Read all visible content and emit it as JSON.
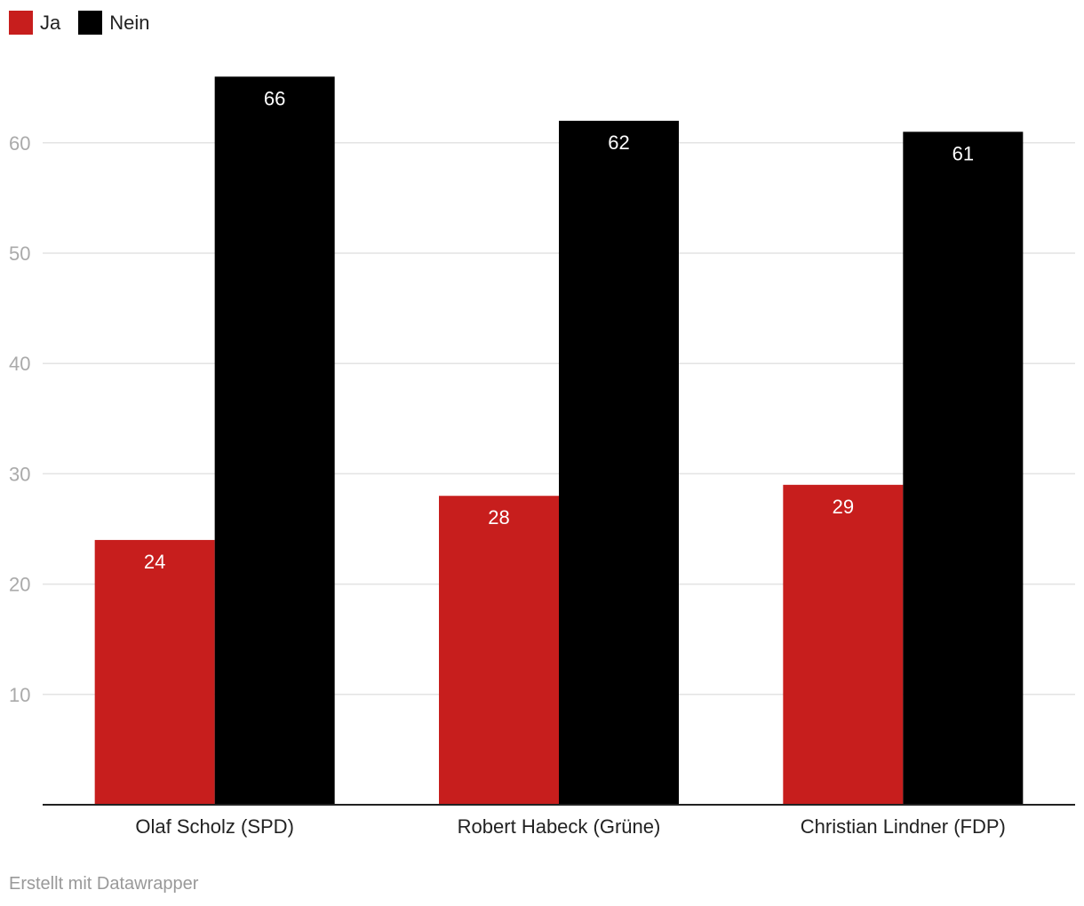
{
  "chart_data": {
    "type": "bar",
    "categories": [
      "Olaf Scholz (SPD)",
      "Robert Habeck (Grüne)",
      "Christian Lindner (FDP)"
    ],
    "series": [
      {
        "name": "Ja",
        "color": "#c71e1d",
        "values": [
          24,
          28,
          29
        ]
      },
      {
        "name": "Nein",
        "color": "#000000",
        "values": [
          66,
          62,
          61
        ]
      }
    ],
    "ylim": [
      0,
      66
    ],
    "yticks": [
      10,
      20,
      30,
      40,
      50,
      60
    ],
    "grid": true,
    "legend_position": "top-left",
    "data_labels": true
  },
  "footer": {
    "credit": "Erstellt mit Datawrapper"
  }
}
